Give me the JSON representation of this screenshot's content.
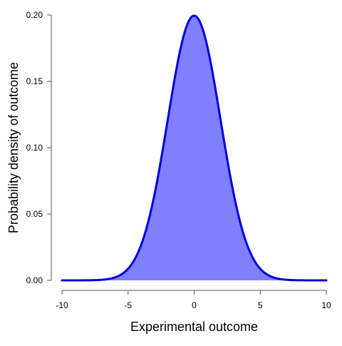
{
  "chart_data": {
    "type": "area",
    "title": "",
    "xlabel": "Experimental outcome",
    "ylabel": "Probability density of outcome",
    "xlim": [
      -10,
      10
    ],
    "ylim": [
      0,
      0.2
    ],
    "x_ticks": [
      -10,
      -5,
      0,
      5,
      10
    ],
    "x_tick_labels": [
      "-10",
      "-5",
      "0",
      "5",
      "10"
    ],
    "y_ticks": [
      0,
      0.05,
      0.1,
      0.15,
      0.2
    ],
    "y_tick_labels": [
      "0.00",
      "0.05",
      "0.10",
      "0.15",
      "0.20"
    ],
    "grid": false,
    "legend": "none",
    "series": [
      {
        "distribution": "normal",
        "mean": 0,
        "sd": 2,
        "x": [
          -10,
          -9,
          -8,
          -7,
          -6,
          -5,
          -4,
          -3,
          -2,
          -1,
          0,
          1,
          2,
          3,
          4,
          5,
          6,
          7,
          8,
          9,
          10
        ],
        "y": [
          0.0,
          0.0,
          0.0001,
          0.0004,
          0.0022,
          0.0088,
          0.027,
          0.0648,
          0.121,
          0.176,
          0.1995,
          0.176,
          0.121,
          0.0648,
          0.027,
          0.0088,
          0.0022,
          0.0004,
          0.0001,
          0.0,
          0.0
        ],
        "line_color": "#0000dd",
        "fill_color": "#8080ff"
      }
    ]
  }
}
